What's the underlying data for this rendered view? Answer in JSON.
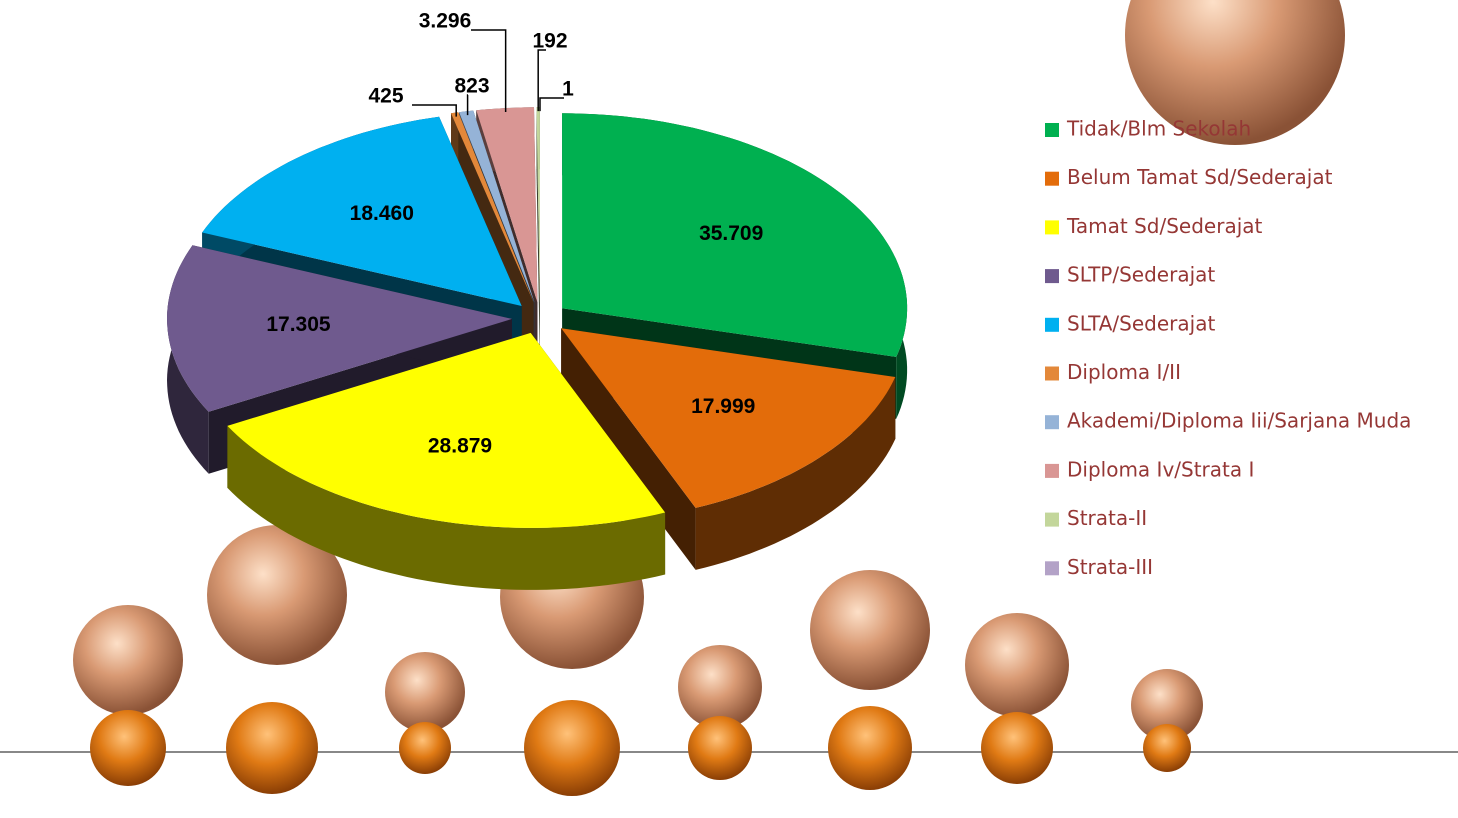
{
  "chart_data": {
    "type": "pie",
    "categories": [
      "Tidak/Blm Sekolah",
      "Belum Tamat Sd/Sederajat",
      "Tamat Sd/Sederajat",
      "SLTP/Sederajat",
      "SLTA/Sederajat",
      "Diploma I/II",
      "Akademi/Diploma Iii/Sarjana Muda",
      "Diploma Iv/Strata I",
      "Strata-II",
      "Strata-III"
    ],
    "values": [
      35709,
      17999,
      28879,
      17305,
      18460,
      425,
      823,
      3296,
      192,
      1
    ],
    "value_labels": [
      "35.709",
      "17.999",
      "28.879",
      "17.305",
      "18.460",
      "425",
      "823",
      "3.296",
      "192",
      "1"
    ],
    "colors": [
      "#00b050",
      "#e36c0a",
      "#ffff00",
      "#6f5a8e",
      "#00b0f0",
      "#e3883a",
      "#95b3d7",
      "#d99694",
      "#c3d69b",
      "#b3a2c7"
    ],
    "legend": "right"
  }
}
